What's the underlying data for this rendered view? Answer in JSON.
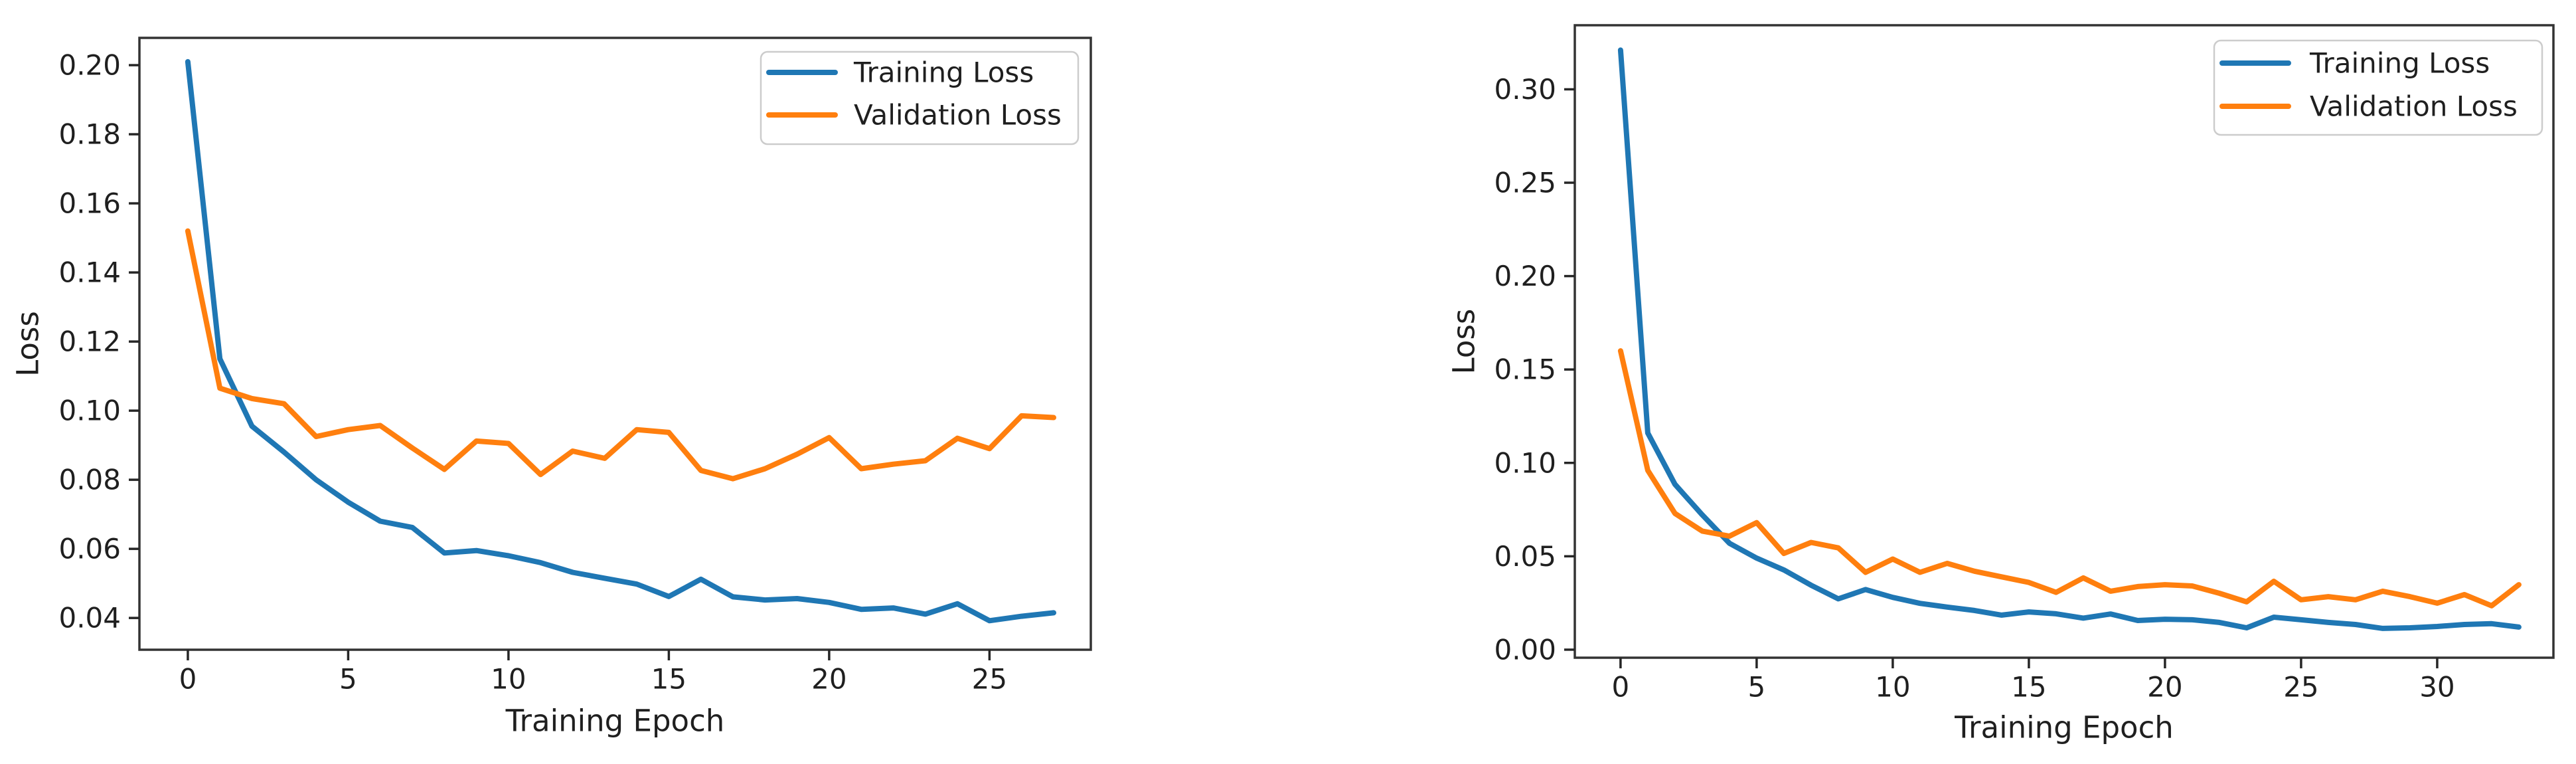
{
  "figure": {
    "background": "#ffffff",
    "spine_color": "#333333",
    "tick_color": "#262626",
    "text_color": "#1f1f1f",
    "legend_border_color": "#cccccc",
    "legend_background": "#ffffff"
  },
  "chart_data": [
    {
      "type": "line",
      "title": "",
      "xlabel": "Training Epoch",
      "ylabel": "Loss",
      "grid": false,
      "legend_position": "upper right",
      "xlim": [
        -1.51,
        28.16
      ],
      "ylim": [
        0.0308,
        0.2079
      ],
      "xticks": {
        "values": [
          0,
          5,
          10,
          15,
          20,
          25
        ],
        "labels": [
          "0",
          "5",
          "10",
          "15",
          "20",
          "25"
        ]
      },
      "yticks": {
        "values": [
          0.04,
          0.06,
          0.08,
          0.1,
          0.12,
          0.14,
          0.16,
          0.18,
          0.2
        ],
        "labels": [
          "0.04",
          "0.06",
          "0.08",
          "0.10",
          "0.12",
          "0.14",
          "0.16",
          "0.18",
          "0.20"
        ]
      },
      "x": [
        0,
        1,
        2,
        3,
        4,
        5,
        6,
        7,
        8,
        9,
        10,
        11,
        12,
        13,
        14,
        15,
        16,
        17,
        18,
        19,
        20,
        21,
        22,
        23,
        24,
        25,
        26,
        27
      ],
      "series": [
        {
          "name": "Training Loss",
          "color": "#1f77b4",
          "values": [
            0.201,
            0.115,
            0.0955,
            0.088,
            0.08,
            0.0735,
            0.068,
            0.0662,
            0.0588,
            0.0595,
            0.058,
            0.056,
            0.0532,
            0.0515,
            0.0498,
            0.0462,
            0.0512,
            0.0461,
            0.0452,
            0.0456,
            0.0445,
            0.0425,
            0.0429,
            0.0411,
            0.0441,
            0.0392,
            0.0405,
            0.0415
          ]
        },
        {
          "name": "Validation Loss",
          "color": "#ff7f0e",
          "values": [
            0.152,
            0.1065,
            0.1035,
            0.102,
            0.0925,
            0.0945,
            0.0957,
            0.0892,
            0.083,
            0.0912,
            0.0905,
            0.0815,
            0.0883,
            0.0862,
            0.0945,
            0.0937,
            0.0827,
            0.0803,
            0.0832,
            0.0874,
            0.0922,
            0.0832,
            0.0845,
            0.0855,
            0.092,
            0.089,
            0.0985,
            0.098
          ]
        }
      ]
    },
    {
      "type": "line",
      "title": "",
      "xlabel": "Training Epoch",
      "ylabel": "Loss",
      "grid": false,
      "legend_position": "upper right",
      "xlim": [
        -1.68,
        34.27
      ],
      "ylim": [
        -0.0043,
        0.3343
      ],
      "xticks": {
        "values": [
          0,
          5,
          10,
          15,
          20,
          25,
          30
        ],
        "labels": [
          "0",
          "5",
          "10",
          "15",
          "20",
          "25",
          "30"
        ]
      },
      "yticks": {
        "values": [
          0.0,
          0.05,
          0.1,
          0.15,
          0.2,
          0.25,
          0.3
        ],
        "labels": [
          "0.00",
          "0.05",
          "0.10",
          "0.15",
          "0.20",
          "0.25",
          "0.30"
        ]
      },
      "x": [
        0,
        1,
        2,
        3,
        4,
        5,
        6,
        7,
        8,
        9,
        10,
        11,
        12,
        13,
        14,
        15,
        16,
        17,
        18,
        19,
        20,
        21,
        22,
        23,
        24,
        25,
        26,
        27,
        28,
        29,
        30,
        31,
        32,
        33
      ],
      "series": [
        {
          "name": "Training Loss",
          "color": "#1f77b4",
          "values": [
            0.321,
            0.116,
            0.0885,
            0.0722,
            0.057,
            0.049,
            0.0427,
            0.0345,
            0.0272,
            0.0322,
            0.028,
            0.0248,
            0.0228,
            0.021,
            0.0185,
            0.0202,
            0.0192,
            0.0169,
            0.0191,
            0.0156,
            0.0163,
            0.016,
            0.0146,
            0.0117,
            0.0174,
            0.016,
            0.0146,
            0.0135,
            0.0114,
            0.0117,
            0.0124,
            0.0135,
            0.0139,
            0.0121
          ]
        },
        {
          "name": "Validation Loss",
          "color": "#ff7f0e",
          "values": [
            0.16,
            0.096,
            0.0729,
            0.0635,
            0.0608,
            0.068,
            0.0515,
            0.0574,
            0.0545,
            0.0414,
            0.0485,
            0.0414,
            0.0462,
            0.042,
            0.039,
            0.036,
            0.0307,
            0.0384,
            0.0313,
            0.0338,
            0.0348,
            0.0341,
            0.0302,
            0.0256,
            0.0366,
            0.0267,
            0.0284,
            0.0267,
            0.0313,
            0.0284,
            0.0249,
            0.0295,
            0.0235,
            0.0348
          ]
        }
      ]
    }
  ]
}
